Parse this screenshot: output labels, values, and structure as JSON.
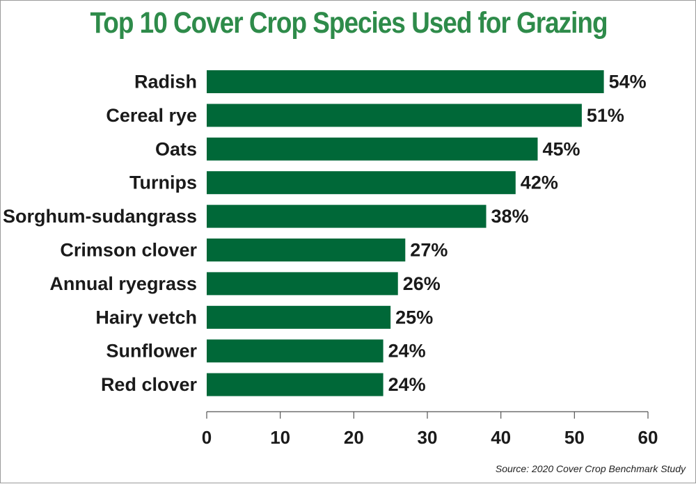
{
  "chart_data": {
    "type": "bar",
    "orientation": "horizontal",
    "title": "Top 10 Cover Crop Species Used for Grazing",
    "categories": [
      "Radish",
      "Cereal rye",
      "Oats",
      "Turnips",
      "Sorghum-sudangrass",
      "Crimson clover",
      "Annual ryegrass",
      "Hairy vetch",
      "Sunflower",
      "Red clover"
    ],
    "values": [
      54,
      51,
      45,
      42,
      38,
      27,
      26,
      25,
      24,
      24
    ],
    "value_labels": [
      "54%",
      "51%",
      "45%",
      "42%",
      "38%",
      "27%",
      "26%",
      "25%",
      "24%",
      "24%"
    ],
    "xlim": [
      0,
      60
    ],
    "xticks": [
      "0",
      "10",
      "20",
      "30",
      "40",
      "50",
      "60"
    ],
    "xlabel": "",
    "ylabel": "",
    "grid": false,
    "bar_color": "#006838",
    "title_color": "#2e8b4a"
  },
  "source": "Source: 2020 Cover Crop Benchmark Study"
}
